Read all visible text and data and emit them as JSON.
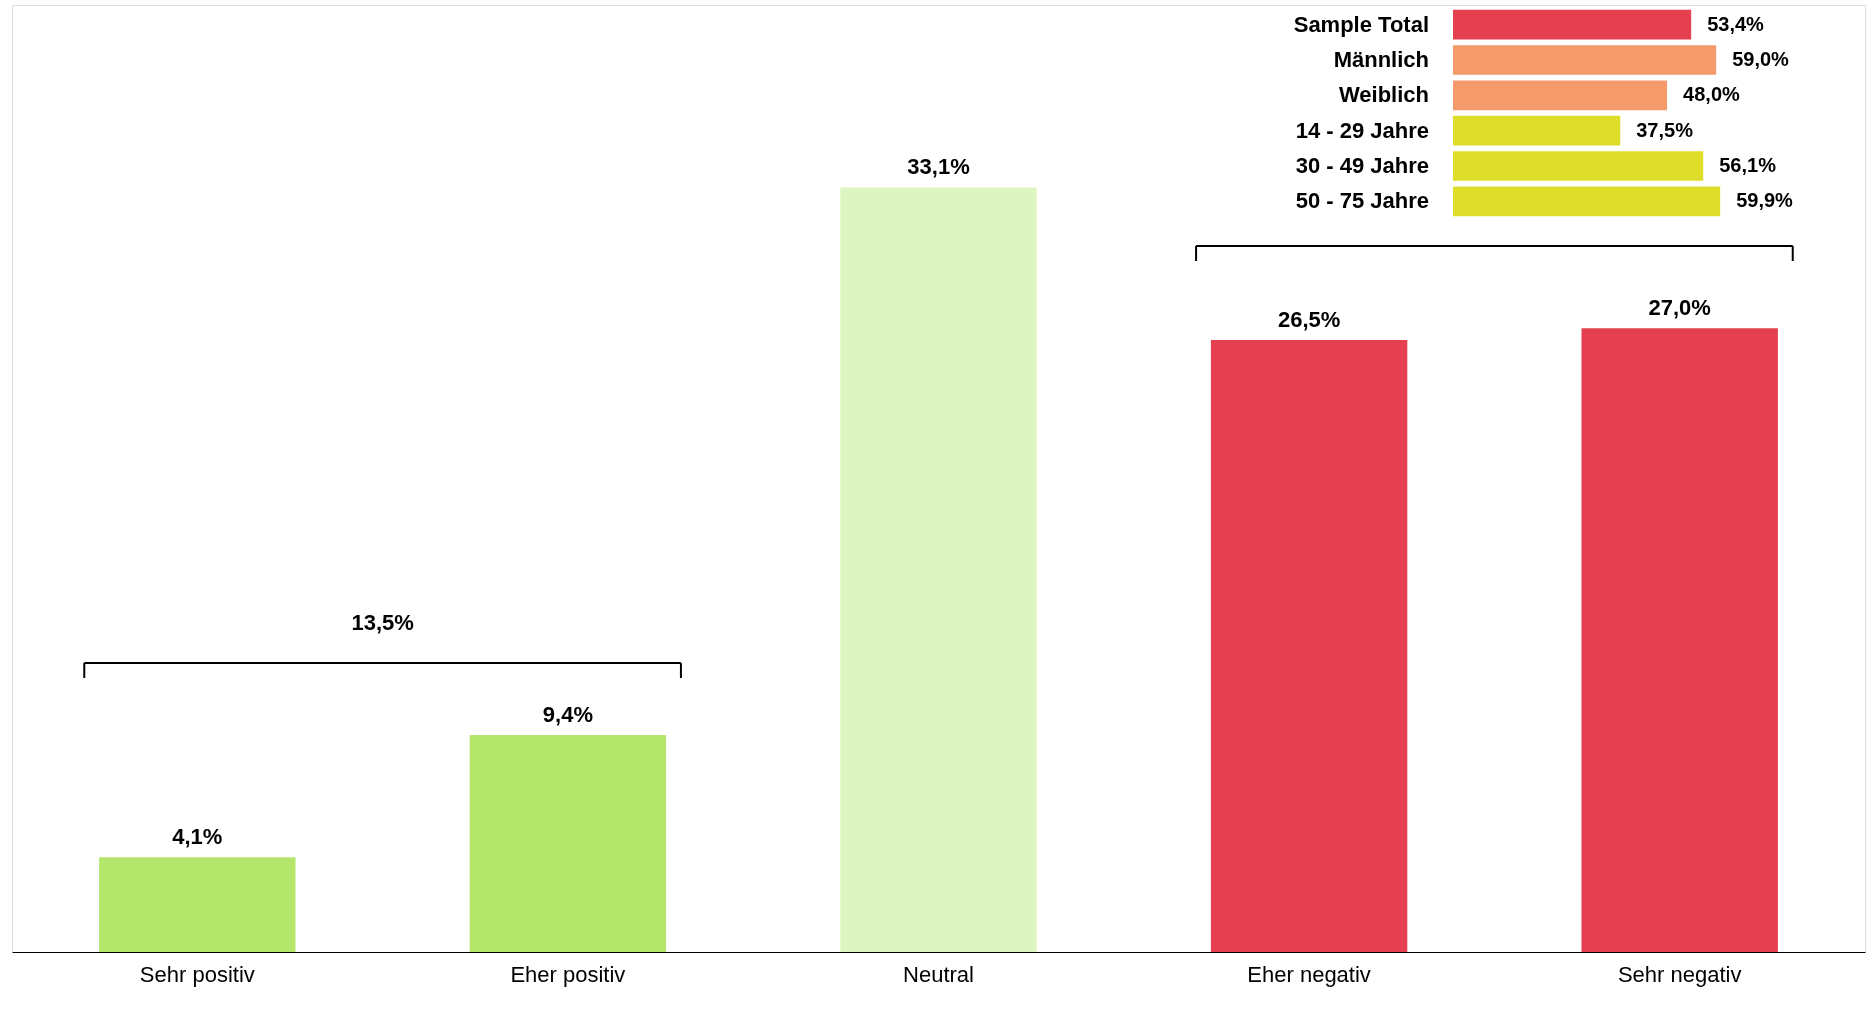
{
  "chart_data": [
    {
      "type": "bar",
      "categories": [
        "Sehr positiv",
        "Eher positiv",
        "Neutral",
        "Eher negativ",
        "Sehr negativ"
      ],
      "values": [
        4.1,
        9.4,
        33.1,
        26.5,
        27.0
      ],
      "value_labels": [
        "4,1%",
        "9,4%",
        "33,1%",
        "26,5%",
        "27,0%"
      ],
      "colors": [
        "#b3e66a",
        "#b3e66a",
        "#ddf5c0",
        "#e5404f",
        "#e5404f"
      ],
      "ylim": [
        0,
        41
      ],
      "tick_labels": "x",
      "grid": false,
      "legend": false,
      "annotations": [
        "13,5%"
      ]
    },
    {
      "type": "bar",
      "orientation": "horizontal",
      "categories": [
        "Sample Total",
        "Männlich",
        "Weiblich",
        "14 - 29 Jahre",
        "30 - 49 Jahre",
        "50 - 75 Jahre"
      ],
      "values": [
        53.4,
        59.0,
        48.0,
        37.5,
        56.1,
        59.9
      ],
      "value_labels": [
        "53,4%",
        "59,0%",
        "48,0%",
        "37,5%",
        "56,1%",
        "59,9%"
      ],
      "colors": [
        "#e5404f",
        "#f59a6a",
        "#f59a6a",
        "#dede2a",
        "#dede2a",
        "#dede2a"
      ],
      "grid": false,
      "legend": false
    }
  ]
}
